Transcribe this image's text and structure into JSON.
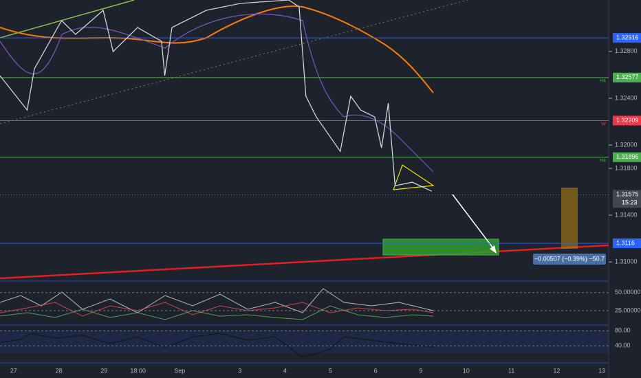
{
  "chart_data": {
    "type": "line",
    "color": "#d1d4dc",
    "x": [
      -0.3,
      0.3,
      0.46,
      1.06,
      1.37,
      1.98,
      2.2,
      2.74,
      3.27,
      3.34,
      3.5,
      4.26,
      5.02,
      6.08,
      6.31,
      6.46,
      6.69,
      7.22,
      7.45,
      7.67,
      7.98,
      8.13,
      8.28,
      8.43,
      8.81,
      9.24
    ],
    "values": [
      1.32593,
      1.32299,
      1.32652,
      1.33064,
      1.32946,
      1.33152,
      1.32799,
      1.33005,
      1.32887,
      1.32593,
      1.33005,
      1.33152,
      1.33211,
      1.3324,
      1.33181,
      1.32417,
      1.3224,
      1.31946,
      1.32417,
      1.32299,
      1.3224,
      1.31976,
      1.32358,
      1.31652,
      1.31682,
      1.31605
    ],
    "xlim": [
      -0.3,
      13.15
    ],
    "xticks": [
      {
        "value": 0,
        "label": "27"
      },
      {
        "value": 1,
        "label": "28"
      },
      {
        "value": 2,
        "label": "29"
      },
      {
        "value": 2.75,
        "label": "18:00"
      },
      {
        "value": 3.67,
        "label": "Sep"
      },
      {
        "value": 5,
        "label": "3"
      },
      {
        "value": 6,
        "label": "4"
      },
      {
        "value": 7,
        "label": "5"
      },
      {
        "value": 8,
        "label": "6"
      },
      {
        "value": 9,
        "label": "9"
      },
      {
        "value": 10,
        "label": "10"
      },
      {
        "value": 11,
        "label": "11"
      },
      {
        "value": 12,
        "label": "12"
      },
      {
        "value": 13,
        "label": "13"
      }
    ],
    "ylim": [
      1.3086,
      1.3324
    ],
    "yticks": [
      {
        "value": 1.328,
        "label": "1.32800"
      },
      {
        "value": 1.324,
        "label": "1.32400"
      },
      {
        "value": 1.32,
        "label": "1.32000"
      },
      {
        "value": 1.318,
        "label": "1.31800"
      },
      {
        "value": 1.314,
        "label": "1.31400"
      },
      {
        "value": 1.31,
        "label": "1.31000"
      }
    ],
    "levels": [
      {
        "value": 1.32916,
        "color": "#2962ff"
      },
      {
        "value": 1.32577,
        "color": "#4caf50",
        "tag": "H4"
      },
      {
        "value": 1.32209,
        "color": "#f23645",
        "tag": "W"
      },
      {
        "value": 1.31896,
        "color": "#4caf50",
        "tag": "H4"
      },
      {
        "value": 1.3116,
        "color": "#2962ff"
      }
    ],
    "last_price": {
      "value": 1.31575,
      "time": "15:23"
    },
    "measure_label": "−0.00507 (−0.39%) −50.7",
    "panes": [
      {
        "ylim": [
          6,
          65
        ],
        "yticks": [
          {
            "value": 50,
            "label": "50.00000"
          },
          {
            "value": 25,
            "label": "25.00000"
          }
        ]
      },
      {
        "ylim": [
          -5,
          95
        ],
        "yticks": [
          {
            "value": 80,
            "label": "80.00"
          },
          {
            "value": 40,
            "label": "40.00"
          }
        ]
      }
    ]
  }
}
